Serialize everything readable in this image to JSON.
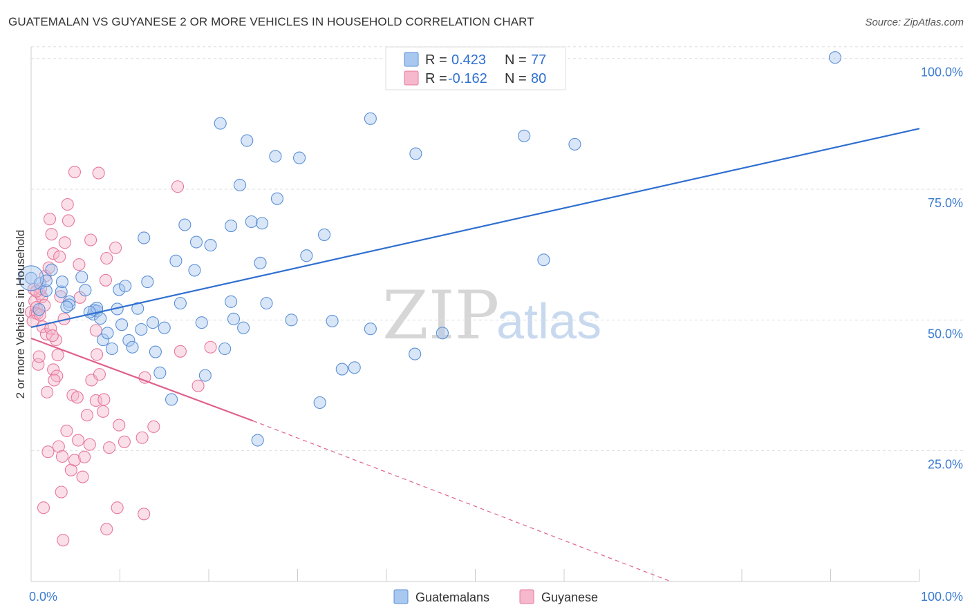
{
  "header": {
    "title": "GUATEMALAN VS GUYANESE 2 OR MORE VEHICLES IN HOUSEHOLD CORRELATION CHART",
    "source": "Source: ZipAtlas.com"
  },
  "legend": {
    "r_label": "R =",
    "n_label": "N =",
    "series": [
      {
        "r": "0.423",
        "n": "77"
      },
      {
        "r": "-0.162",
        "n": "80"
      }
    ]
  },
  "bottom_legend": [
    "Guatemalans",
    "Guyanese"
  ],
  "watermark": {
    "zip": "ZIP",
    "atlas": "atlas"
  },
  "colors": {
    "blue_fill": "#a9c8f0",
    "blue_stroke": "#5b8fd6",
    "blue_line": "#2f6fd0",
    "pink_fill": "#f5b8cc",
    "pink_stroke": "#e8789c",
    "pink_line": "#e0608c",
    "tick_blue": "#3b7bd1"
  },
  "chart_data": {
    "type": "scatter",
    "title": "GUATEMALAN VS GUYANESE 2 OR MORE VEHICLES IN HOUSEHOLD CORRELATION CHART",
    "xlabel": "",
    "ylabel": "2 or more Vehicles in Household",
    "xlim": [
      0,
      100
    ],
    "ylim": [
      0,
      103
    ],
    "x_tick_labels": [
      "0.0%",
      "100.0%"
    ],
    "y_ticks": [
      25,
      50,
      75,
      100
    ],
    "y_tick_labels": [
      "25.0%",
      "50.0%",
      "75.0%",
      "100.0%"
    ],
    "series": [
      {
        "name": "Guatemalans",
        "r": 0.423,
        "n": 77,
        "trend": {
          "x0": 0,
          "y0": 48.6,
          "x1": 100,
          "y1": 86.6
        },
        "points": [
          [
            0,
            58
          ],
          [
            1,
            57
          ],
          [
            1.7,
            55.6
          ],
          [
            1.7,
            57.5
          ],
          [
            2.3,
            59.6
          ],
          [
            3.4,
            55.4
          ],
          [
            3.5,
            57.3
          ],
          [
            4.3,
            53.5
          ],
          [
            4.3,
            52.9
          ],
          [
            5.7,
            58.2
          ],
          [
            6.1,
            55.7
          ],
          [
            7,
            51.1
          ],
          [
            7.1,
            51.9
          ],
          [
            7.4,
            51.7
          ],
          [
            7.4,
            52.3
          ],
          [
            7.8,
            50.3
          ],
          [
            8.1,
            46.2
          ],
          [
            8.6,
            47.5
          ],
          [
            9.1,
            44.5
          ],
          [
            9.7,
            52.1
          ],
          [
            9.9,
            55.8
          ],
          [
            10.2,
            49.1
          ],
          [
            10.6,
            56.5
          ],
          [
            11,
            46.1
          ],
          [
            11.4,
            44.8
          ],
          [
            12,
            52.2
          ],
          [
            12.4,
            48.2
          ],
          [
            12.7,
            65.7
          ],
          [
            13.1,
            57.3
          ],
          [
            13.7,
            49.5
          ],
          [
            14,
            43.9
          ],
          [
            14.5,
            39.9
          ],
          [
            15,
            48.5
          ],
          [
            15.8,
            34.8
          ],
          [
            16.3,
            61.3
          ],
          [
            16.8,
            53.2
          ],
          [
            17.3,
            68.2
          ],
          [
            18.4,
            59.5
          ],
          [
            18.6,
            64.9
          ],
          [
            19.2,
            49.5
          ],
          [
            19.6,
            39.4
          ],
          [
            20.2,
            64.3
          ],
          [
            21.3,
            87.6
          ],
          [
            21.8,
            44.5
          ],
          [
            22.5,
            68
          ],
          [
            22.5,
            53.5
          ],
          [
            22.8,
            50.2
          ],
          [
            23.5,
            75.8
          ],
          [
            23.9,
            48.5
          ],
          [
            24.3,
            84.3
          ],
          [
            24.8,
            68.8
          ],
          [
            25.5,
            27
          ],
          [
            25.8,
            60.9
          ],
          [
            26,
            68.5
          ],
          [
            26.5,
            53.2
          ],
          [
            27.5,
            81.3
          ],
          [
            27.7,
            73.2
          ],
          [
            29.3,
            50
          ],
          [
            30.2,
            81
          ],
          [
            31,
            62.3
          ],
          [
            32.5,
            34.2
          ],
          [
            33,
            66.3
          ],
          [
            33.9,
            49.8
          ],
          [
            35,
            40.6
          ],
          [
            36.4,
            40.9
          ],
          [
            38.2,
            48.3
          ],
          [
            38.2,
            88.5
          ],
          [
            43.2,
            43.5
          ],
          [
            43.3,
            81.8
          ],
          [
            46.3,
            47.5
          ],
          [
            55.5,
            85.2
          ],
          [
            57.7,
            61.5
          ],
          [
            61.2,
            83.6
          ],
          [
            90.5,
            100.2
          ],
          [
            4,
            52.5
          ],
          [
            6.6,
            51.5
          ],
          [
            0.9,
            52
          ]
        ]
      },
      {
        "name": "Guyanese",
        "r": -0.162,
        "n": 80,
        "trend": {
          "x0": 0,
          "y0": 46.5,
          "x1": 25,
          "y1": 30.7
        },
        "trend_dashed": {
          "x0": 25,
          "y0": 30.7,
          "x1": 72,
          "y1": 0
        },
        "points": [
          [
            0,
            51.5
          ],
          [
            0.3,
            55.9
          ],
          [
            0.4,
            53.6
          ],
          [
            0.5,
            51.3
          ],
          [
            0.6,
            52.4
          ],
          [
            0.7,
            51.2
          ],
          [
            0.8,
            41.5
          ],
          [
            0.9,
            43
          ],
          [
            1,
            55
          ],
          [
            1.2,
            54.4
          ],
          [
            1.3,
            48.7
          ],
          [
            1.4,
            14.1
          ],
          [
            1.5,
            52.8
          ],
          [
            1.6,
            58.4
          ],
          [
            1.7,
            47.3
          ],
          [
            1.8,
            36.2
          ],
          [
            1.9,
            24.8
          ],
          [
            2.1,
            69.3
          ],
          [
            2.2,
            48.4
          ],
          [
            2.3,
            66.4
          ],
          [
            2.5,
            40.5
          ],
          [
            2.5,
            62.7
          ],
          [
            2.8,
            46.2
          ],
          [
            2.9,
            39.3
          ],
          [
            3,
            43.3
          ],
          [
            3.1,
            25.8
          ],
          [
            3.2,
            62.1
          ],
          [
            3.4,
            17.1
          ],
          [
            3.5,
            23.9
          ],
          [
            3.6,
            7.9
          ],
          [
            3.7,
            50.2
          ],
          [
            3.8,
            64.8
          ],
          [
            4,
            28.8
          ],
          [
            4.1,
            72.1
          ],
          [
            4.2,
            69
          ],
          [
            4.5,
            21.3
          ],
          [
            4.7,
            35.6
          ],
          [
            4.9,
            23.2
          ],
          [
            4.9,
            78.3
          ],
          [
            5.2,
            35.2
          ],
          [
            5.3,
            27
          ],
          [
            5.4,
            60.6
          ],
          [
            5.5,
            54.3
          ],
          [
            5.8,
            20
          ],
          [
            6,
            23.8
          ],
          [
            6.3,
            31.8
          ],
          [
            6.6,
            26.2
          ],
          [
            6.7,
            65.3
          ],
          [
            6.8,
            38.5
          ],
          [
            7.3,
            34.6
          ],
          [
            7.3,
            48
          ],
          [
            7.4,
            43.4
          ],
          [
            7.6,
            78.1
          ],
          [
            7.7,
            39.6
          ],
          [
            8.1,
            32.5
          ],
          [
            8.2,
            34.8
          ],
          [
            8.4,
            57.6
          ],
          [
            8.5,
            10
          ],
          [
            8.5,
            61.8
          ],
          [
            8.8,
            25.6
          ],
          [
            9.5,
            63.8
          ],
          [
            9.7,
            14.1
          ],
          [
            9.9,
            29.9
          ],
          [
            10.5,
            26.7
          ],
          [
            12.5,
            27.5
          ],
          [
            12.8,
            39
          ],
          [
            12.7,
            12.9
          ],
          [
            13.8,
            29.6
          ],
          [
            16.5,
            75.5
          ],
          [
            16.8,
            44
          ],
          [
            18.8,
            37.4
          ],
          [
            20.2,
            44.8
          ],
          [
            0.2,
            49.8
          ],
          [
            1.1,
            56
          ],
          [
            2,
            60
          ],
          [
            2.6,
            38.5
          ],
          [
            3.3,
            54.5
          ],
          [
            1,
            51
          ],
          [
            2.4,
            47
          ],
          [
            0.6,
            55.5
          ]
        ]
      }
    ]
  }
}
